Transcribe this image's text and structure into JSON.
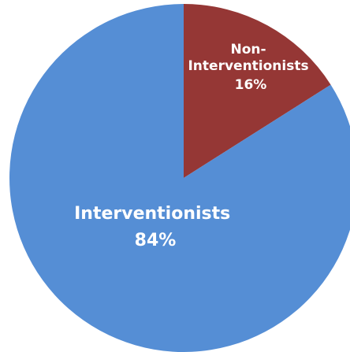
{
  "chart_data": {
    "type": "pie",
    "title": "",
    "slices": [
      {
        "label_lines": [
          "Non-",
          "Interventionists"
        ],
        "value": 16,
        "value_label": "16%",
        "color": "#953735"
      },
      {
        "label_lines": [
          "Interventionists"
        ],
        "value": 84,
        "value_label": "84%",
        "color": "#558ED5"
      }
    ],
    "start_angle_deg": 0,
    "direction": "clockwise",
    "legend": "none"
  }
}
